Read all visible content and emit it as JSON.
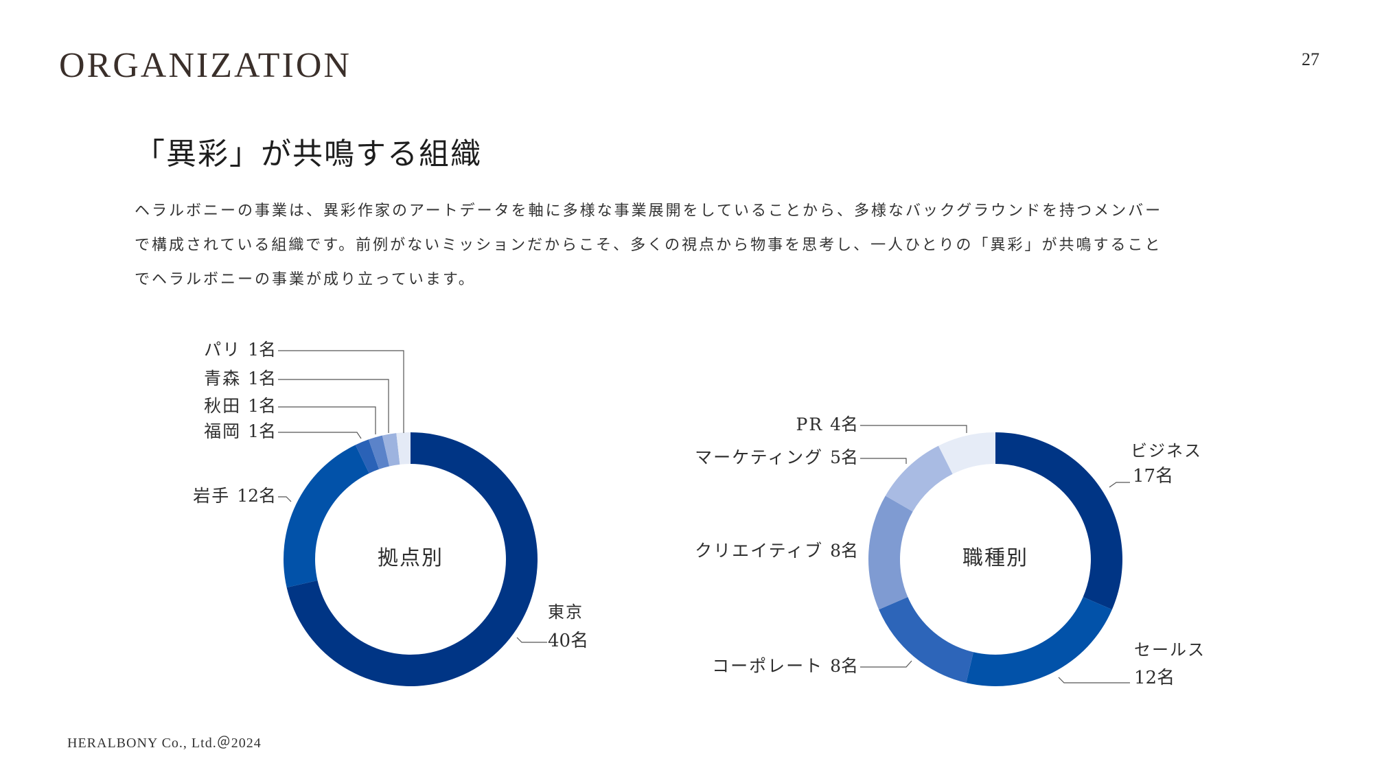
{
  "header": {
    "title": "ORGANIZATION",
    "page_number": "27"
  },
  "main": {
    "heading": "「異彩」が共鳴する組織",
    "paragraph_lines": [
      "ヘラルボニーの事業は、異彩作家のアートデータを軸に多様な事業展開をしていることから、多様なバックグラウンドを持つメンバー",
      "で構成されている組織です。前例がないミッションだからこそ、多くの視点から物事を思考し、一人ひとりの「異彩」が共鳴すること",
      "でヘラルボニーの事業が成り立っています。"
    ]
  },
  "footer": {
    "copyright": "HERALBONY Co., Ltd.＠2024"
  },
  "chart_data": [
    {
      "type": "pie",
      "center_label": "拠点別",
      "unit": "名",
      "slices": [
        {
          "label": "東京",
          "value": 40,
          "display": "40名",
          "color": "#003585"
        },
        {
          "label": "岩手",
          "value": 12,
          "display": "12名",
          "color": "#0252a9"
        },
        {
          "label": "福岡",
          "value": 1,
          "display": "1名",
          "color": "#2a62b7"
        },
        {
          "label": "秋田",
          "value": 1,
          "display": "1名",
          "color": "#5b83c9"
        },
        {
          "label": "青森",
          "value": 1,
          "display": "1名",
          "color": "#9db3df"
        },
        {
          "label": "パリ",
          "value": 1,
          "display": "1名",
          "color": "#e4eaf6"
        }
      ]
    },
    {
      "type": "pie",
      "center_label": "職種別",
      "unit": "名",
      "slices": [
        {
          "label": "ビジネス",
          "value": 17,
          "display": "17名",
          "color": "#003585"
        },
        {
          "label": "セールス",
          "value": 12,
          "display": "12名",
          "color": "#0252a9"
        },
        {
          "label": "コーポレート",
          "value": 8,
          "display": "8名",
          "color": "#2d65b9"
        },
        {
          "label": "クリエイティブ",
          "value": 8,
          "display": "8名",
          "color": "#7f9bd2"
        },
        {
          "label": "マーケティング",
          "value": 5,
          "display": "5名",
          "color": "#a9bbe3"
        },
        {
          "label": "PR",
          "value": 4,
          "display": "4名",
          "color": "#e6ecf7"
        }
      ]
    }
  ]
}
